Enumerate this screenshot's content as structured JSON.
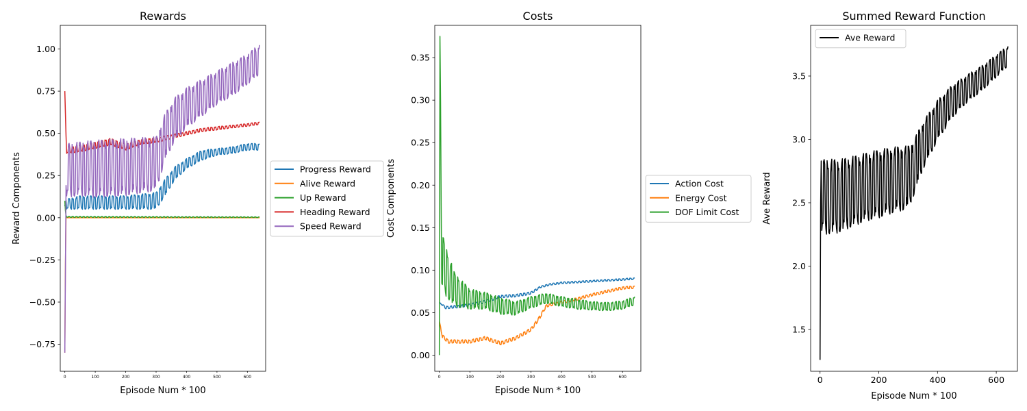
{
  "chart_data": [
    {
      "type": "line",
      "title": "Rewards",
      "xlabel": "Episode Num * 100",
      "ylabel": "Reward Components",
      "xlim": [
        -15,
        660
      ],
      "ylim": [
        -0.91,
        1.14
      ],
      "xticks": [
        0,
        100,
        200,
        300,
        400,
        500,
        600
      ],
      "yticks": [
        -0.75,
        -0.5,
        -0.25,
        0.0,
        0.25,
        0.5,
        0.75,
        1.0
      ],
      "yticklabels": [
        "−0.75",
        "−0.50",
        "−0.25",
        "0.00",
        "0.25",
        "0.50",
        "0.75",
        "1.00"
      ],
      "legend_position": "center-left-outside",
      "series": [
        {
          "name": "Progress Reward",
          "color": "#1f77b4",
          "x": [
            0,
            5,
            50,
            100,
            200,
            300,
            330,
            360,
            400,
            450,
            500,
            550,
            600,
            640
          ],
          "y": [
            0.05,
            0.08,
            0.09,
            0.09,
            0.09,
            0.1,
            0.18,
            0.26,
            0.32,
            0.37,
            0.39,
            0.4,
            0.42,
            0.42
          ],
          "oscillation": [
            0.03,
            0.03,
            0.04,
            0.04,
            0.04,
            0.05,
            0.05,
            0.04,
            0.03,
            0.03,
            0.02,
            0.02,
            0.02,
            0.02
          ]
        },
        {
          "name": "Alive Reward",
          "color": "#ff7f0e",
          "x": [
            0,
            3,
            10,
            640
          ],
          "y": [
            -0.8,
            0.0,
            0.0,
            0.0
          ],
          "oscillation": [
            0,
            0,
            0,
            0
          ]
        },
        {
          "name": "Up Reward",
          "color": "#2ca02c",
          "x": [
            0,
            3,
            10,
            640
          ],
          "y": [
            0.1,
            0.01,
            0.005,
            0.003
          ],
          "oscillation": [
            0,
            0.004,
            0.003,
            0.002
          ]
        },
        {
          "name": "Heading Reward",
          "color": "#d62728",
          "x": [
            0,
            5,
            50,
            100,
            150,
            200,
            250,
            300,
            350,
            400,
            450,
            500,
            550,
            600,
            640
          ],
          "y": [
            0.75,
            0.4,
            0.41,
            0.43,
            0.45,
            0.42,
            0.45,
            0.46,
            0.48,
            0.5,
            0.52,
            0.53,
            0.54,
            0.55,
            0.56
          ],
          "oscillation": [
            0,
            0.02,
            0.02,
            0.02,
            0.02,
            0.02,
            0.015,
            0.015,
            0.012,
            0.01,
            0.01,
            0.01,
            0.008,
            0.008,
            0.008
          ]
        },
        {
          "name": "Speed Reward",
          "color": "#9467bd",
          "x": [
            0,
            5,
            50,
            100,
            200,
            300,
            330,
            360,
            400,
            450,
            500,
            550,
            600,
            640
          ],
          "y": [
            -0.8,
            0.28,
            0.29,
            0.29,
            0.3,
            0.32,
            0.48,
            0.58,
            0.65,
            0.71,
            0.77,
            0.82,
            0.88,
            0.94
          ],
          "oscillation": [
            0,
            0.16,
            0.16,
            0.17,
            0.17,
            0.16,
            0.14,
            0.13,
            0.12,
            0.11,
            0.1,
            0.1,
            0.09,
            0.09
          ]
        }
      ]
    },
    {
      "type": "line",
      "title": "Costs",
      "xlabel": "Episode Num * 100",
      "ylabel": "Cost Components",
      "xlim": [
        -15,
        660
      ],
      "ylim": [
        -0.019,
        0.388
      ],
      "xticks": [
        0,
        100,
        200,
        300,
        400,
        500,
        600
      ],
      "yticks": [
        0.0,
        0.05,
        0.1,
        0.15,
        0.2,
        0.25,
        0.3,
        0.35
      ],
      "yticklabels": [
        "0.00",
        "0.05",
        "0.10",
        "0.15",
        "0.20",
        "0.25",
        "0.30",
        "0.35"
      ],
      "legend_position": "center-left-outside",
      "series": [
        {
          "name": "Action Cost",
          "color": "#1f77b4",
          "x": [
            0,
            20,
            60,
            100,
            150,
            200,
            250,
            300,
            330,
            360,
            400,
            450,
            500,
            550,
            600,
            640
          ],
          "y": [
            0.062,
            0.056,
            0.057,
            0.059,
            0.063,
            0.069,
            0.07,
            0.073,
            0.08,
            0.083,
            0.085,
            0.086,
            0.087,
            0.088,
            0.089,
            0.09
          ],
          "oscillation": [
            0,
            0.0015,
            0.0015,
            0.0015,
            0.0015,
            0.0015,
            0.0015,
            0.0015,
            0.001,
            0.001,
            0.001,
            0.001,
            0.001,
            0.001,
            0.001,
            0.001
          ]
        },
        {
          "name": "Energy Cost",
          "color": "#ff7f0e",
          "x": [
            0,
            10,
            30,
            100,
            150,
            200,
            250,
            300,
            330,
            350,
            400,
            450,
            500,
            550,
            600,
            640
          ],
          "y": [
            0.04,
            0.022,
            0.016,
            0.016,
            0.02,
            0.014,
            0.02,
            0.03,
            0.045,
            0.058,
            0.062,
            0.066,
            0.071,
            0.075,
            0.079,
            0.08
          ],
          "oscillation": [
            0,
            0.002,
            0.002,
            0.002,
            0.002,
            0.002,
            0.002,
            0.002,
            0.002,
            0.0015,
            0.0015,
            0.0015,
            0.0015,
            0.0015,
            0.0015,
            0.0015
          ]
        },
        {
          "name": "DOF Limit Cost",
          "color": "#2ca02c",
          "x": [
            0,
            2,
            8,
            20,
            50,
            100,
            150,
            200,
            250,
            300,
            350,
            400,
            450,
            500,
            550,
            600,
            640
          ],
          "y": [
            0.0,
            0.375,
            0.11,
            0.1,
            0.077,
            0.066,
            0.064,
            0.058,
            0.055,
            0.062,
            0.067,
            0.063,
            0.06,
            0.058,
            0.057,
            0.059,
            0.064
          ],
          "oscillation": [
            0,
            0,
            0.035,
            0.03,
            0.02,
            0.012,
            0.01,
            0.01,
            0.008,
            0.007,
            0.006,
            0.006,
            0.006,
            0.005,
            0.005,
            0.005,
            0.005
          ]
        }
      ]
    },
    {
      "type": "line",
      "title": "Summed Reward Function",
      "xlabel": "Episode Num * 100",
      "ylabel": "Ave Reward",
      "xlim": [
        -32,
        672
      ],
      "ylim": [
        1.17,
        3.9
      ],
      "xticks": [
        0,
        200,
        400,
        600
      ],
      "yticks": [
        1.5,
        2.0,
        2.5,
        3.0,
        3.5
      ],
      "yticklabels": [
        "1.5",
        "2.0",
        "2.5",
        "3.0",
        "3.5"
      ],
      "legend_position": "upper-left",
      "series": [
        {
          "name": "Ave Reward",
          "color": "#000000",
          "x": [
            0,
            1,
            3,
            20,
            60,
            100,
            150,
            200,
            250,
            300,
            320,
            350,
            400,
            450,
            500,
            550,
            600,
            640
          ],
          "y": [
            1.26,
            2.2,
            2.55,
            2.55,
            2.55,
            2.58,
            2.62,
            2.65,
            2.68,
            2.7,
            2.78,
            2.95,
            3.15,
            3.3,
            3.4,
            3.48,
            3.58,
            3.66
          ],
          "oscillation": [
            0,
            0,
            0.28,
            0.3,
            0.29,
            0.28,
            0.27,
            0.27,
            0.26,
            0.25,
            0.22,
            0.19,
            0.16,
            0.13,
            0.11,
            0.1,
            0.09,
            0.08
          ]
        }
      ]
    }
  ]
}
